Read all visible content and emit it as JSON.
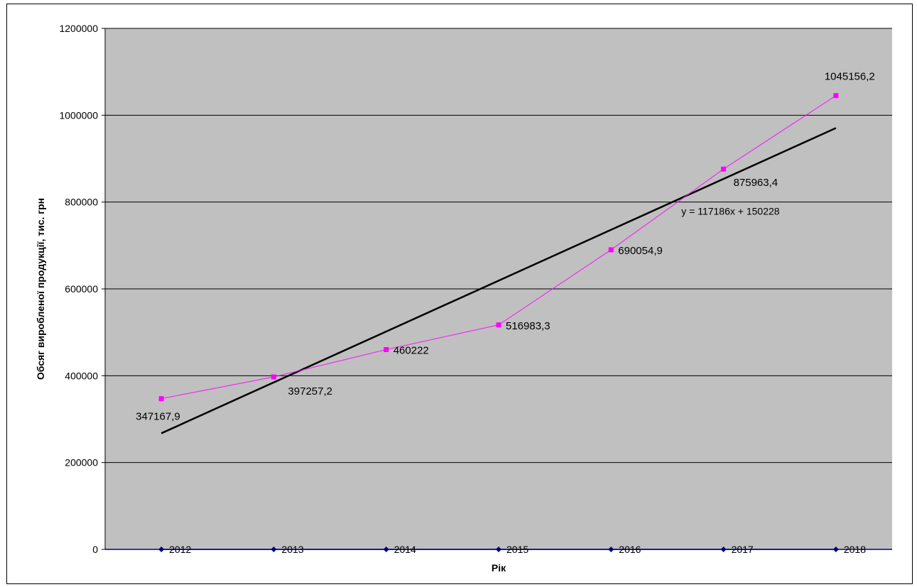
{
  "chart_data": {
    "type": "line",
    "title": "",
    "xlabel": "Рік",
    "ylabel": "Обсяг виробленої продукції, тис. грн",
    "ylim": [
      0,
      1200000
    ],
    "yticks": [
      0,
      200000,
      400000,
      600000,
      800000,
      1000000,
      1200000
    ],
    "grid": true,
    "legend": "none",
    "background_color": "#c0c0c0",
    "categories": [
      "2012",
      "2013",
      "2014",
      "2015",
      "2016",
      "2017",
      "2018"
    ],
    "series": [
      {
        "values": [
          347167.9,
          397257.2,
          460222,
          516983.3,
          690054.9,
          875963.4,
          1045156.2
        ],
        "labels": [
          "347167,9",
          "397257,2",
          "460222",
          "516983,3",
          "690054,9",
          "875963,4",
          "1045156,2"
        ],
        "color": "#ff00ff"
      },
      {
        "values": [
          0,
          0,
          0,
          0,
          0,
          0,
          0
        ],
        "color": "#000080"
      }
    ],
    "trendline": {
      "type": "linear",
      "slope": 117186,
      "intercept": 150228,
      "equation": "y = 117186x + 150228",
      "color": "#000000"
    }
  }
}
